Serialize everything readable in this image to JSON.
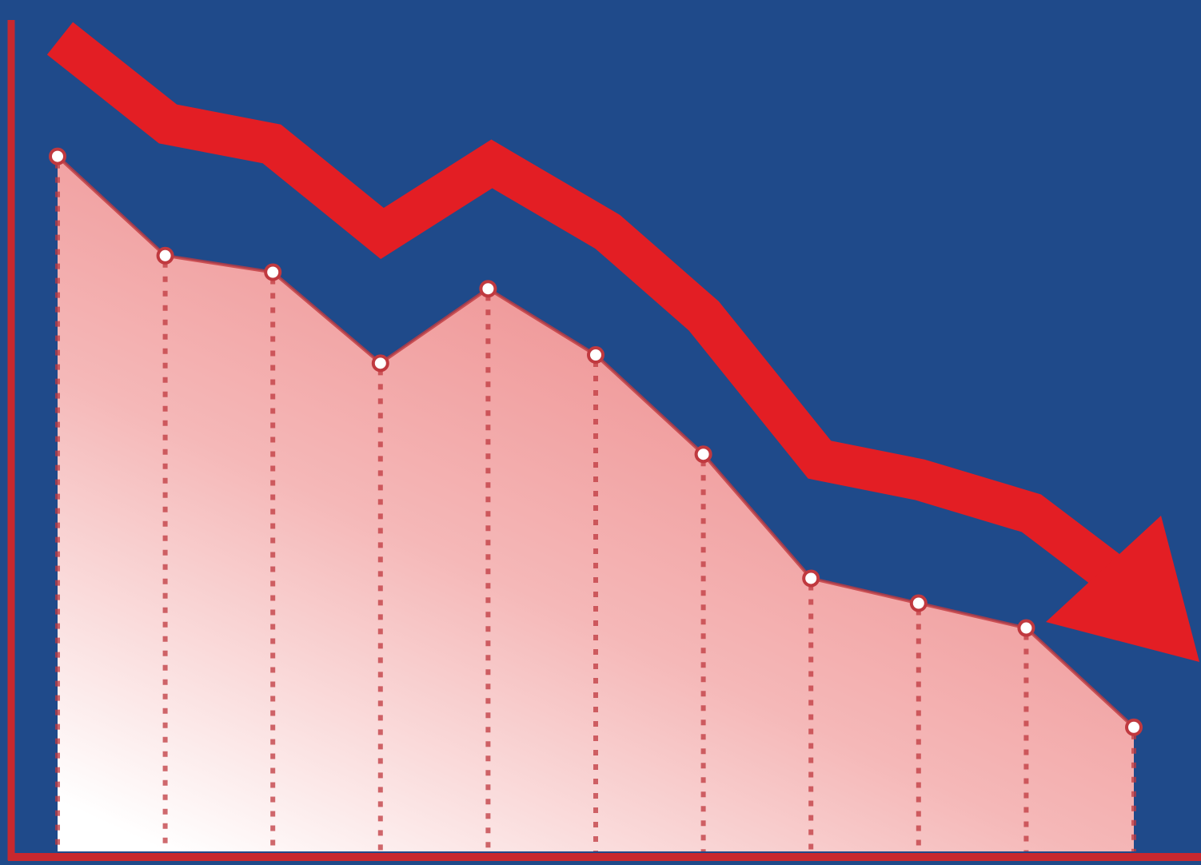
{
  "chart_data": {
    "type": "area",
    "categories": [
      null,
      null,
      null,
      null,
      null,
      null,
      null,
      null,
      null,
      null,
      null
    ],
    "values": [
      84,
      72,
      70,
      59,
      68,
      60,
      48,
      33,
      30,
      27,
      15
    ],
    "color": "#c0393f",
    "ylim": [
      0,
      100
    ]
  }
}
